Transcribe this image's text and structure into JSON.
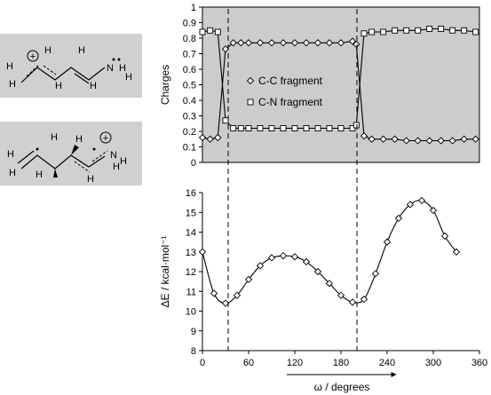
{
  "structures": {
    "top": {
      "atoms": [
        "H",
        "H",
        "H",
        "H",
        "H",
        "H",
        "N",
        "H",
        "H"
      ],
      "charge_symbol": "+"
    },
    "bottom": {
      "atoms": [
        "H",
        "H",
        "H",
        "H",
        "H",
        "H",
        "N",
        "H",
        "H"
      ],
      "charge_symbol": "+"
    }
  },
  "chart_data": [
    {
      "type": "line",
      "ylabel": "Charges",
      "ylim": [
        0,
        1
      ],
      "yticks": [
        "0",
        "0.1",
        "0.2",
        "0.3",
        "0.4",
        "0.5",
        "0.6",
        "0.7",
        "0.8",
        "0.9",
        "1"
      ],
      "xlim": [
        0,
        360
      ],
      "background": "#cccccc",
      "legend_position": "center",
      "series": [
        {
          "name": "C-C fragment",
          "marker": "diamond",
          "points": [
            [
              0,
              0.16
            ],
            [
              10,
              0.15
            ],
            [
              20,
              0.16
            ],
            [
              30,
              0.73
            ],
            [
              40,
              0.77
            ],
            [
              50,
              0.77
            ],
            [
              60,
              0.77
            ],
            [
              75,
              0.77
            ],
            [
              90,
              0.77
            ],
            [
              105,
              0.77
            ],
            [
              120,
              0.77
            ],
            [
              135,
              0.77
            ],
            [
              150,
              0.77
            ],
            [
              165,
              0.77
            ],
            [
              180,
              0.77
            ],
            [
              195,
              0.78
            ],
            [
              200,
              0.76
            ],
            [
              210,
              0.17
            ],
            [
              220,
              0.15
            ],
            [
              235,
              0.15
            ],
            [
              250,
              0.15
            ],
            [
              265,
              0.14
            ],
            [
              280,
              0.14
            ],
            [
              295,
              0.14
            ],
            [
              310,
              0.14
            ],
            [
              325,
              0.14
            ],
            [
              340,
              0.15
            ],
            [
              355,
              0.15
            ]
          ]
        },
        {
          "name": "C-N fragment",
          "marker": "square",
          "points": [
            [
              0,
              0.84
            ],
            [
              10,
              0.85
            ],
            [
              20,
              0.84
            ],
            [
              30,
              0.27
            ],
            [
              40,
              0.22
            ],
            [
              50,
              0.22
            ],
            [
              60,
              0.22
            ],
            [
              75,
              0.22
            ],
            [
              90,
              0.22
            ],
            [
              105,
              0.22
            ],
            [
              120,
              0.22
            ],
            [
              135,
              0.22
            ],
            [
              150,
              0.22
            ],
            [
              165,
              0.22
            ],
            [
              180,
              0.22
            ],
            [
              195,
              0.22
            ],
            [
              200,
              0.24
            ],
            [
              210,
              0.83
            ],
            [
              220,
              0.84
            ],
            [
              235,
              0.84
            ],
            [
              250,
              0.85
            ],
            [
              265,
              0.85
            ],
            [
              280,
              0.85
            ],
            [
              295,
              0.86
            ],
            [
              310,
              0.86
            ],
            [
              325,
              0.85
            ],
            [
              340,
              0.85
            ],
            [
              355,
              0.84
            ]
          ]
        }
      ]
    },
    {
      "type": "line",
      "xlabel": "ω / degrees",
      "ylabel": "ΔE / kcal·mol⁻¹",
      "xlim": [
        0,
        360
      ],
      "ylim": [
        8,
        16
      ],
      "xticks": [
        "0",
        "60",
        "120",
        "180",
        "240",
        "300",
        "360"
      ],
      "yticks": [
        "8",
        "9",
        "10",
        "11",
        "12",
        "13",
        "14",
        "15",
        "16"
      ],
      "series": [
        {
          "marker": "diamond",
          "points": [
            [
              0,
              13.0
            ],
            [
              15,
              10.9
            ],
            [
              30,
              10.4
            ],
            [
              45,
              10.8
            ],
            [
              60,
              11.6
            ],
            [
              75,
              12.3
            ],
            [
              90,
              12.7
            ],
            [
              105,
              12.8
            ],
            [
              120,
              12.75
            ],
            [
              135,
              12.5
            ],
            [
              150,
              12.0
            ],
            [
              165,
              11.4
            ],
            [
              180,
              10.8
            ],
            [
              195,
              10.45
            ],
            [
              210,
              10.6
            ],
            [
              225,
              11.9
            ],
            [
              240,
              13.5
            ],
            [
              255,
              14.7
            ],
            [
              270,
              15.4
            ],
            [
              285,
              15.6
            ],
            [
              300,
              15.1
            ],
            [
              315,
              13.8
            ],
            [
              330,
              13.0
            ]
          ]
        }
      ]
    }
  ]
}
